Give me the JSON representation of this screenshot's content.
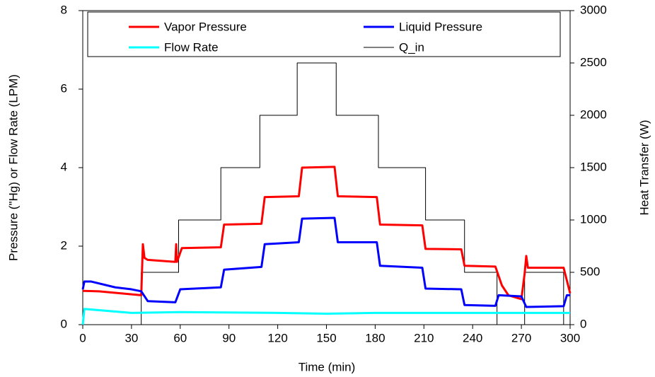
{
  "chart_data": {
    "type": "line",
    "xlabel": "Time (min)",
    "ylabel": "Pressure (\"Hg) or Flow Rate (LPM)",
    "y2label": "Heat Transfer (W)",
    "xlim": [
      0,
      300
    ],
    "xticks": [
      0,
      30,
      60,
      90,
      120,
      150,
      180,
      210,
      240,
      270,
      300
    ],
    "ylim": [
      0,
      8
    ],
    "yticks": [
      0,
      2,
      4,
      6,
      8
    ],
    "y2lim": [
      0,
      3000
    ],
    "y2ticks": [
      0,
      500,
      1000,
      1500,
      2000,
      2500,
      3000
    ],
    "grid": false,
    "legend": "upper center",
    "series": [
      {
        "name": "Vapor Pressure",
        "color": "#ff0000",
        "x": [
          0,
          10,
          36,
          37,
          38,
          40,
          57,
          57.5,
          58,
          61,
          85,
          87,
          110,
          112,
          133,
          135,
          155,
          157,
          181,
          183,
          209,
          211,
          233,
          235,
          254,
          258,
          262,
          270,
          272,
          273,
          274,
          296,
          300
        ],
        "values": [
          0.86,
          0.85,
          0.75,
          2.05,
          1.7,
          1.65,
          1.6,
          2.05,
          1.6,
          1.95,
          1.97,
          2.55,
          2.57,
          3.25,
          3.27,
          4.0,
          4.02,
          3.27,
          3.25,
          2.55,
          2.53,
          1.93,
          1.92,
          1.5,
          1.48,
          1.0,
          0.75,
          0.65,
          1.3,
          1.75,
          1.45,
          1.45,
          0.8
        ]
      },
      {
        "name": "Liquid Pressure",
        "color": "#0000ff",
        "x": [
          0,
          1,
          5,
          20,
          30,
          36,
          40,
          57,
          60,
          85,
          87,
          110,
          112,
          133,
          135,
          155,
          157,
          181,
          183,
          209,
          211,
          233,
          235,
          254,
          256,
          270,
          273,
          296,
          298,
          300
        ],
        "values": [
          0.9,
          1.1,
          1.1,
          0.95,
          0.9,
          0.85,
          0.6,
          0.57,
          0.9,
          0.95,
          1.4,
          1.47,
          2.05,
          2.1,
          2.7,
          2.72,
          2.1,
          2.1,
          1.5,
          1.45,
          0.92,
          0.9,
          0.5,
          0.48,
          0.75,
          0.72,
          0.45,
          0.47,
          0.75,
          0.75
        ]
      },
      {
        "name": "Flow Rate",
        "color": "#00ffff",
        "x": [
          0,
          1,
          30,
          60,
          120,
          150,
          180,
          240,
          270,
          300
        ],
        "values": [
          0,
          0.4,
          0.3,
          0.32,
          0.3,
          0.28,
          0.3,
          0.3,
          0.3,
          0.3
        ]
      },
      {
        "name": "Q_in",
        "color": "#000000",
        "axis": "y2",
        "x": [
          0,
          36,
          36,
          59,
          59,
          85,
          85,
          109,
          109,
          132,
          132,
          156,
          156,
          182,
          182,
          211,
          211,
          235,
          235,
          255,
          255,
          272,
          272,
          296,
          296,
          300
        ],
        "values": [
          0,
          0,
          500,
          500,
          1000,
          1000,
          1500,
          1500,
          2000,
          2000,
          2500,
          2500,
          2000,
          2000,
          1500,
          1500,
          1000,
          1000,
          500,
          500,
          0,
          0,
          500,
          500,
          0,
          0
        ]
      }
    ]
  }
}
